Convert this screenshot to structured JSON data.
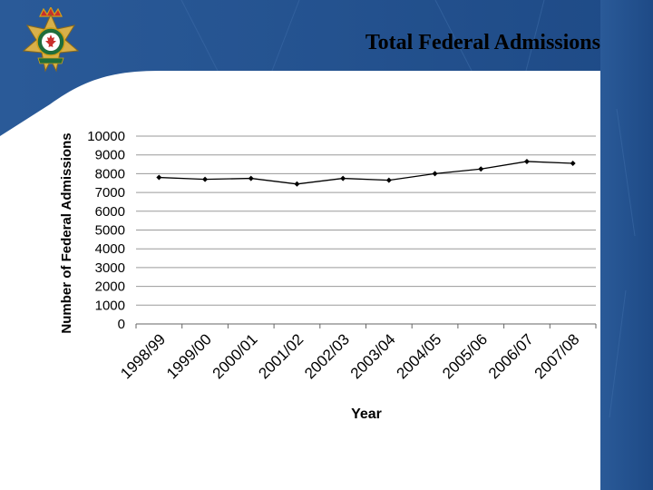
{
  "slide": {
    "title": "Total Federal Admissions",
    "logo_icon": "correctional-service-canada-crest-icon",
    "banner_color": "#1f4e8c"
  },
  "chart_data": {
    "type": "line",
    "title": "",
    "xlabel": "Year",
    "ylabel": "Number of Federal Admissions",
    "categories": [
      "1998/99",
      "1999/00",
      "2000/01",
      "2001/02",
      "2002/03",
      "2003/04",
      "2004/05",
      "2005/06",
      "2006/07",
      "2007/08"
    ],
    "values": [
      7800,
      7700,
      7750,
      7450,
      7750,
      7650,
      8000,
      8250,
      8650,
      8550
    ],
    "ylim": [
      0,
      10000
    ],
    "yticks": [
      "0",
      "1000",
      "2000",
      "3000",
      "4000",
      "5000",
      "6000",
      "7000",
      "8000",
      "9000",
      "10000"
    ],
    "grid": true,
    "legend": "none",
    "line_color": "#000000"
  }
}
